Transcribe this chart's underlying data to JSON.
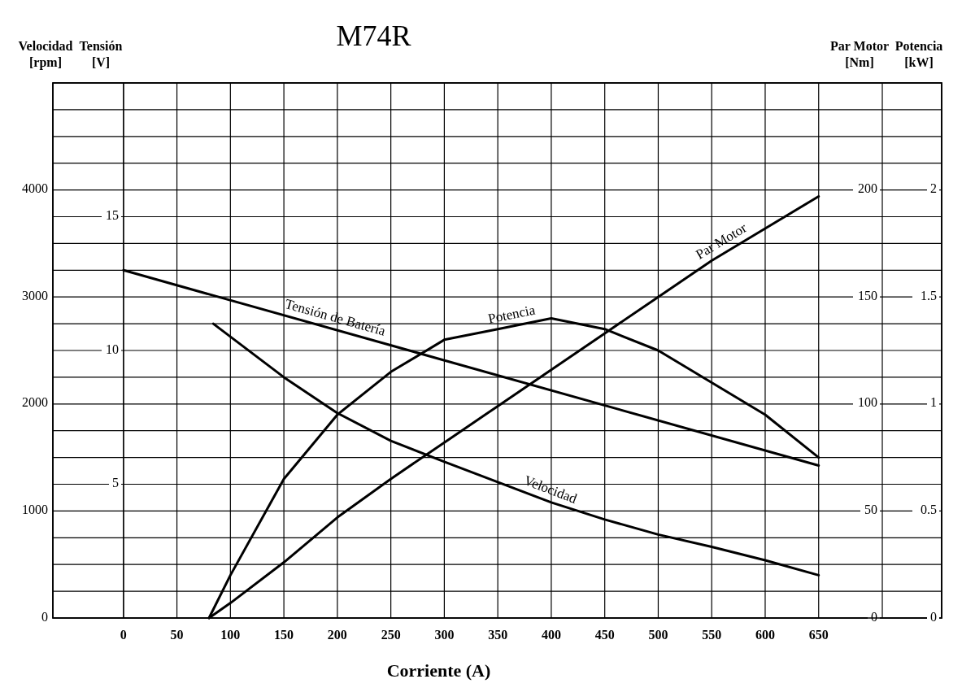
{
  "chart_data": [
    {
      "type": "line",
      "title": "M74R",
      "xlabel": "Corriente (A)",
      "ylabel": "Velocidad [rpm]",
      "y2label": "Tensión [V]",
      "y3label": "Par Motor [Nm]",
      "xlim": [
        -66,
        765
      ],
      "xticks": [
        0,
        50,
        100,
        150,
        200,
        250,
        300,
        350,
        400,
        450,
        500,
        550,
        600,
        650
      ],
      "ylim": [
        0,
        5000
      ],
      "yticks": [
        0,
        {
          "value": 250,
          "label": null
        },
        {
          "value": 500,
          "label": null
        },
        {
          "value": 750,
          "label": null
        },
        1000,
        {
          "value": 1250,
          "label": null
        },
        {
          "value": 1500,
          "label": null
        },
        {
          "value": 1750,
          "label": null
        },
        2000,
        {
          "value": 2250,
          "label": null
        },
        {
          "value": 2500,
          "label": null
        },
        {
          "value": 2750,
          "label": null
        },
        3000,
        {
          "value": 3250,
          "label": null
        },
        {
          "value": 3500,
          "label": null
        },
        {
          "value": 3750,
          "label": null
        },
        4000,
        {
          "value": 4250,
          "label": null
        },
        {
          "value": 4500,
          "label": null
        },
        {
          "value": 4750,
          "label": null
        },
        {
          "value": 5000,
          "label": null
        }
      ],
      "y2lim": [
        0,
        20
      ],
      "y2ticks": [
        5,
        10,
        15
      ],
      "y3lim": [
        0,
        250
      ],
      "y3ticks": [
        0,
        50,
        100,
        150,
        200
      ],
      "grid": true,
      "marker": "none",
      "line_style": "solid",
      "series": [
        {
          "name": "Tensión de Batería",
          "color": "#000000",
          "axis": "y2",
          "x": [
            0,
            650
          ],
          "values": [
            13.0,
            5.7
          ]
        },
        {
          "name": "Velocidad",
          "color": "#000000",
          "x": [
            84,
            150,
            200,
            250,
            300,
            350,
            400,
            450,
            500,
            550,
            600,
            650
          ],
          "values": [
            2750,
            2250,
            1915,
            1655,
            1460,
            1270,
            1080,
            920,
            780,
            665,
            540,
            400
          ]
        },
        {
          "name": "Par Motor",
          "color": "#000000",
          "axis": "y3",
          "x": [
            80,
            100,
            150,
            200,
            250,
            300,
            350,
            400,
            450,
            500,
            550,
            600,
            650
          ],
          "values": [
            0,
            7,
            26,
            47,
            65,
            82,
            99,
            116,
            133,
            150,
            167,
            182,
            197
          ]
        }
      ]
    },
    {
      "type": "line",
      "ylabel": "Potencia [kW]",
      "xlim": [
        -66,
        765
      ],
      "ylim": [
        0,
        2.5
      ],
      "yticks": [
        0,
        0.5,
        1,
        1.5,
        2
      ],
      "tick_labels": "y",
      "series": [
        {
          "name": "Potencia",
          "color": "#000000",
          "x": [
            80,
            100,
            150,
            200,
            250,
            300,
            350,
            400,
            450,
            500,
            550,
            600,
            650
          ],
          "values": [
            0,
            0.2,
            0.65,
            0.95,
            1.15,
            1.3,
            1.35,
            1.4,
            1.35,
            1.25,
            1.1,
            0.95,
            0.75
          ]
        }
      ]
    }
  ]
}
